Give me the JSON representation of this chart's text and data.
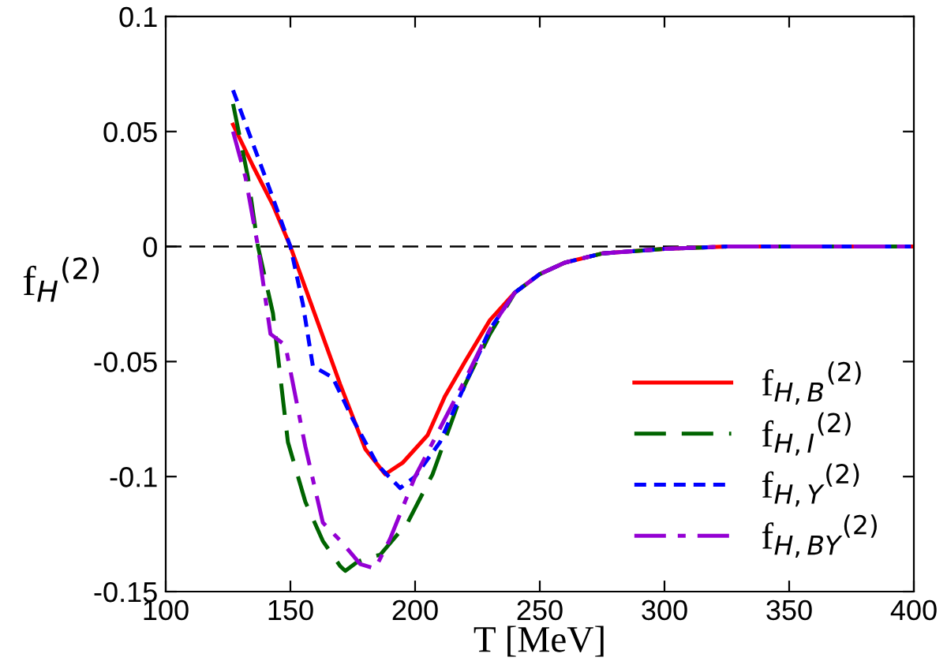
{
  "chart_data": {
    "type": "line",
    "xlabel": "T [MeV]",
    "ylabel": "f$_{H}$$^{(2)}$",
    "xlim": [
      100,
      400
    ],
    "xticks": [
      100,
      150,
      200,
      250,
      300,
      350,
      400
    ],
    "ylim": [
      -0.15,
      0.1
    ],
    "yticks": [
      -0.15,
      -0.1,
      -0.05,
      0,
      0.05,
      0.1
    ],
    "grid": false,
    "legend": "bottom right",
    "ref_lines": [
      {
        "axis": "y",
        "value": 0,
        "color": "#000000",
        "line_style": "dashed"
      }
    ],
    "series": [
      {
        "name": "f$_{H,B}$$^{(2)}$",
        "color": "#ff0000",
        "line_style": "solid",
        "x": [
          127,
          135,
          143,
          150,
          160,
          170,
          180,
          188,
          195,
          205,
          212,
          220,
          230,
          240,
          250,
          260,
          275,
          300,
          325,
          350,
          400
        ],
        "values": [
          0.053,
          0.035,
          0.018,
          0.0,
          -0.03,
          -0.06,
          -0.088,
          -0.099,
          -0.094,
          -0.082,
          -0.065,
          -0.05,
          -0.032,
          -0.02,
          -0.012,
          -0.007,
          -0.003,
          -0.001,
          0,
          0,
          0
        ]
      },
      {
        "name": "f$_{H,I}$$^{(2)}$",
        "color": "#006400",
        "line_style": "dashed",
        "x": [
          127,
          133,
          137,
          143,
          149,
          156,
          163,
          170,
          172,
          177,
          182,
          186,
          197,
          207,
          220,
          230,
          240,
          250,
          260,
          275,
          300,
          325,
          350,
          400
        ],
        "values": [
          0.062,
          0.03,
          0.0,
          -0.029,
          -0.085,
          -0.111,
          -0.128,
          -0.139,
          -0.141,
          -0.137,
          -0.135,
          -0.134,
          -0.12,
          -0.099,
          -0.06,
          -0.038,
          -0.02,
          -0.012,
          -0.007,
          -0.003,
          -0.001,
          0,
          0,
          0
        ]
      },
      {
        "name": "f$_{H,Y}$$^{(2)}$",
        "color": "#0000ff",
        "line_style": "dotted",
        "x": [
          127,
          140,
          150,
          155,
          159,
          167,
          175,
          185,
          194,
          200,
          210,
          220,
          230,
          240,
          250,
          260,
          275,
          300,
          325,
          350,
          400
        ],
        "values": [
          0.068,
          0.03,
          0.0,
          -0.025,
          -0.052,
          -0.057,
          -0.075,
          -0.095,
          -0.105,
          -0.1,
          -0.085,
          -0.06,
          -0.036,
          -0.02,
          -0.012,
          -0.007,
          -0.003,
          -0.001,
          0,
          0,
          0
        ]
      },
      {
        "name": "f$_{H,BY}$$^{(2)}$",
        "color": "#9400d3",
        "line_style": "dashdot",
        "x": [
          127,
          132,
          137,
          142,
          148,
          156,
          163,
          171,
          178,
          184,
          190,
          200,
          220,
          230,
          240,
          250,
          260,
          275,
          300,
          325,
          350,
          400
        ],
        "values": [
          0.05,
          0.03,
          0.0,
          -0.038,
          -0.043,
          -0.087,
          -0.12,
          -0.129,
          -0.138,
          -0.14,
          -0.127,
          -0.1,
          -0.058,
          -0.036,
          -0.02,
          -0.012,
          -0.007,
          -0.003,
          -0.001,
          0,
          0,
          0
        ]
      }
    ]
  }
}
